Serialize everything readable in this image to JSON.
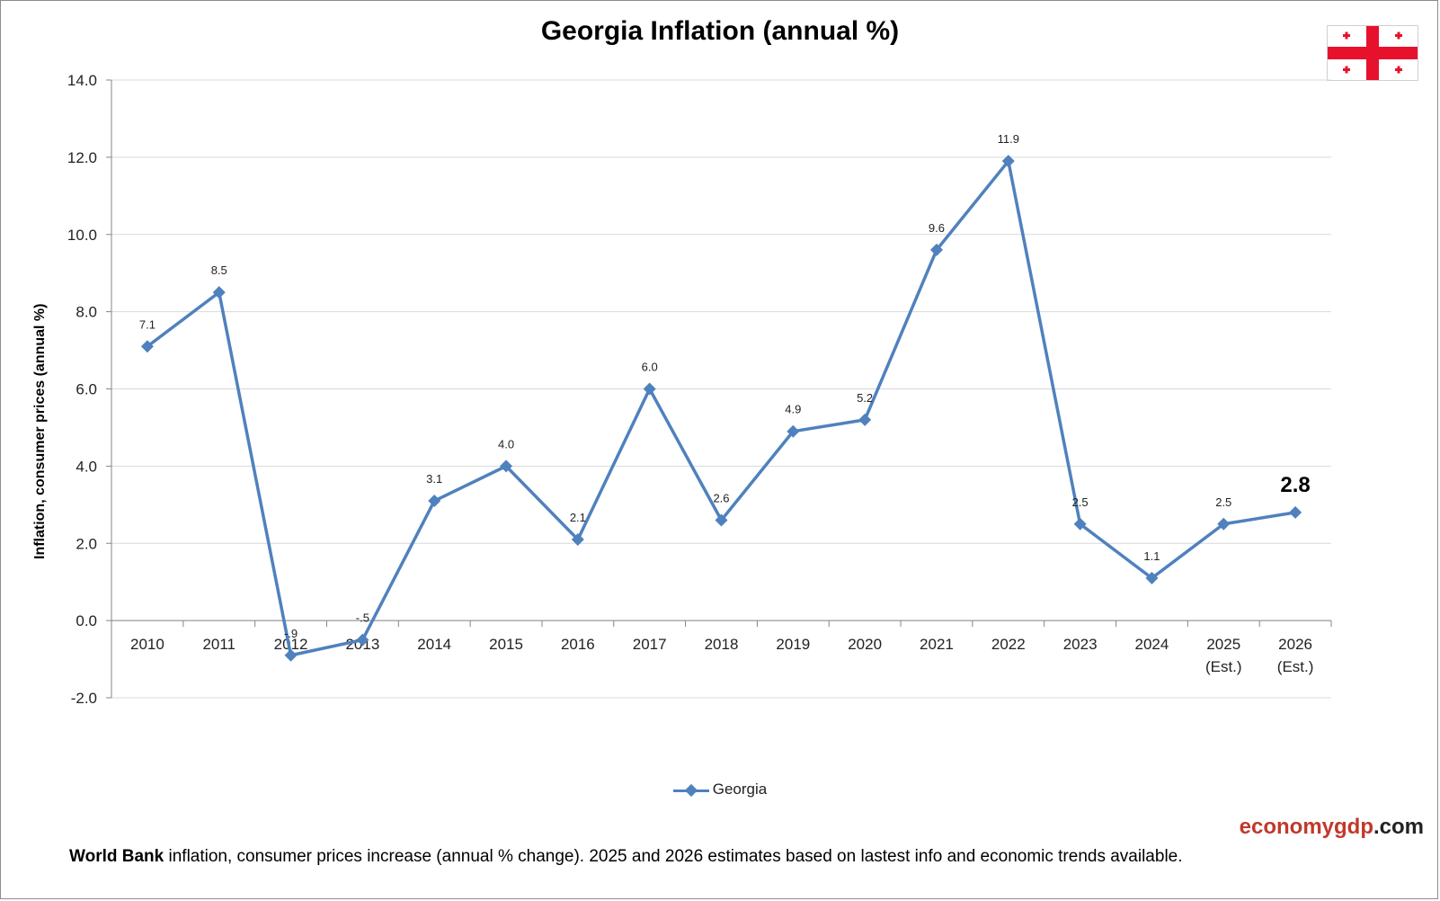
{
  "header": {
    "title": "Georgia Inflation (annual %)",
    "flag_icon": "georgia-flag-icon"
  },
  "colors": {
    "series": "#4f81bd",
    "brand_accent": "#c0392b",
    "flag_red": "#e8112d"
  },
  "footer": {
    "brand_part1": "economygdp",
    "brand_part2": ".com",
    "note_bold": "World Bank",
    "note_text": " inflation, consumer prices increase (annual % change).  2025 and 2026 estimates based on lastest info and economic trends available."
  },
  "chart_data": {
    "type": "line",
    "title": "Georgia Inflation (annual %)",
    "xlabel": "",
    "ylabel": "Inflation, consumer prices (annual %)",
    "ylim": [
      -2.0,
      14.0
    ],
    "yticks": [
      -2.0,
      0.0,
      2.0,
      4.0,
      6.0,
      8.0,
      10.0,
      12.0,
      14.0
    ],
    "ytick_labels": [
      "-2.0",
      "0.0",
      "2.0",
      "4.0",
      "6.0",
      "8.0",
      "10.0",
      "12.0",
      "14.0"
    ],
    "grid": true,
    "legend_position": "bottom",
    "categories": [
      [
        "2010"
      ],
      [
        "2011"
      ],
      [
        "2012"
      ],
      [
        "2013"
      ],
      [
        "2014"
      ],
      [
        "2015"
      ],
      [
        "2016"
      ],
      [
        "2017"
      ],
      [
        "2018"
      ],
      [
        "2019"
      ],
      [
        "2020"
      ],
      [
        "2021"
      ],
      [
        "2022"
      ],
      [
        "2023"
      ],
      [
        "2024"
      ],
      [
        "2025",
        "(Est.)"
      ],
      [
        "2026",
        "(Est.)"
      ]
    ],
    "series": [
      {
        "name": "Georgia",
        "values": [
          7.1,
          8.5,
          -0.9,
          -0.5,
          3.1,
          4.0,
          2.1,
          6.0,
          2.6,
          4.9,
          5.2,
          9.6,
          11.9,
          2.5,
          1.1,
          2.5,
          2.8
        ],
        "labels": [
          "7.1",
          "8.5",
          "-.9",
          "-.5",
          "3.1",
          "4.0",
          "2.1",
          "6.0",
          "2.6",
          "4.9",
          "5.2",
          "9.6",
          "11.9",
          "2.5",
          "1.1",
          "2.5",
          "2.8"
        ]
      }
    ],
    "emphasized_label_index": 16
  }
}
